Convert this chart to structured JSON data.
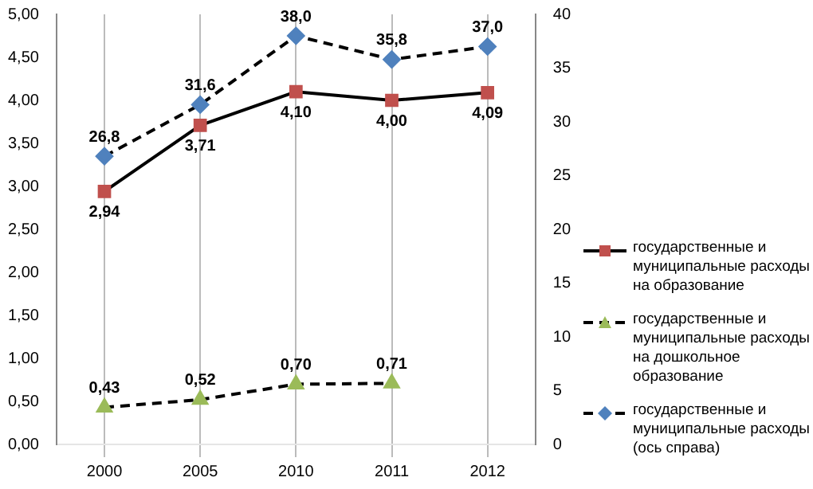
{
  "chart_data": {
    "type": "line",
    "categories": [
      "2000",
      "2005",
      "2010",
      "2011",
      "2012"
    ],
    "series": [
      {
        "name": "государственные и муниципальные расходы на образование",
        "color": "#c0504d",
        "values": [
          2.94,
          3.71,
          4.1,
          4.0,
          4.09
        ],
        "value_labels": [
          "2,94",
          "3,71",
          "4,10",
          "4,00",
          "4,09"
        ],
        "marker": "square",
        "line_style": "solid"
      },
      {
        "name": "государственные и муниципальные расходы на дошкольное образование",
        "color": "#9bbb59",
        "values": [
          0.43,
          0.52,
          0.7,
          0.71,
          null
        ],
        "value_labels": [
          "0,43",
          "0,52",
          "0,70",
          "0,71",
          null
        ],
        "marker": "triangle",
        "line_style": "dashed"
      },
      {
        "name": "государственные и муниципальные расходы (ось справа)",
        "color": "#4f81bd",
        "values": [
          26.8,
          31.6,
          38.0,
          35.8,
          37.0
        ],
        "value_labels": [
          "26,8",
          "31,6",
          "38,0",
          "35,8",
          "37,0"
        ],
        "marker": "diamond",
        "line_style": "dashed",
        "axis": "y2"
      }
    ],
    "ylim": [
      0,
      5
    ],
    "yticks": [
      {
        "value": 0,
        "label": "0,00"
      },
      {
        "value": 0.5,
        "label": "0,50"
      },
      {
        "value": 1,
        "label": "1,00"
      },
      {
        "value": 1.5,
        "label": "1,50"
      },
      {
        "value": 2,
        "label": "2,00"
      },
      {
        "value": 2.5,
        "label": "2,50"
      },
      {
        "value": 3,
        "label": "3,00"
      },
      {
        "value": 3.5,
        "label": "3,50"
      },
      {
        "value": 4,
        "label": "4,00"
      },
      {
        "value": 4.5,
        "label": "4,50"
      },
      {
        "value": 5,
        "label": "5,00"
      }
    ],
    "y2lim": [
      0,
      40
    ],
    "y2ticks": [
      0,
      5,
      10,
      15,
      20,
      25,
      30,
      35,
      40
    ],
    "grid": "x",
    "legend": "right"
  }
}
